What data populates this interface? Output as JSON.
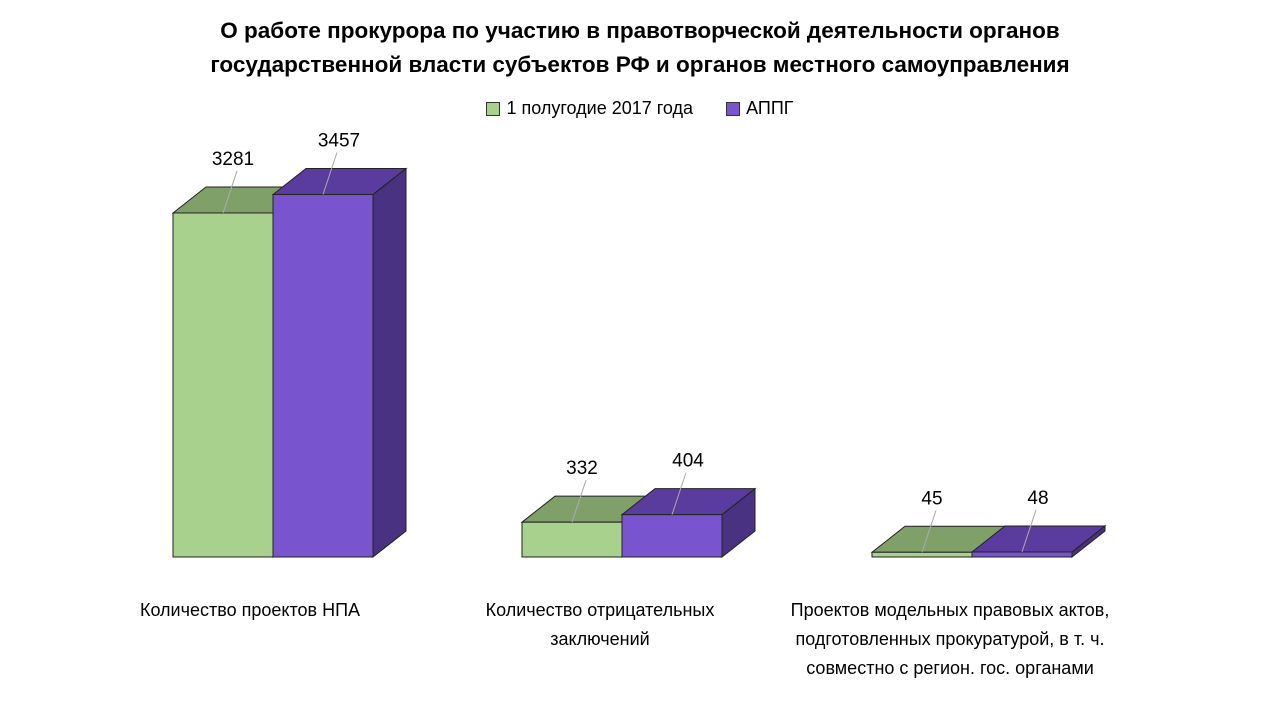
{
  "chart_data": {
    "type": "bar",
    "title_lines": [
      "О работе прокурора по участию в правотворческой деятельности органов",
      "государственной власти субъектов РФ и органов местного самоуправления"
    ],
    "categories": [
      "Количество проектов НПА",
      "Количество отрицательных заключений",
      "Проектов модельных правовых актов, подготовленных прокуратурой, в т. ч. совместно с регион. гос. органами"
    ],
    "series": [
      {
        "name": "1 полугодие 2017 года",
        "values": [
          3281,
          332,
          45
        ],
        "color": "#a9d18e",
        "top_color": "#80a06a",
        "side_color": "#6f8f5a"
      },
      {
        "name": "АППГ",
        "values": [
          3457,
          404,
          48
        ],
        "color": "#7954cf",
        "top_color": "#5a3c9e",
        "side_color": "#4a3283"
      }
    ],
    "legend_position": "top",
    "grid": false,
    "ylim": [
      0,
      3457
    ]
  }
}
